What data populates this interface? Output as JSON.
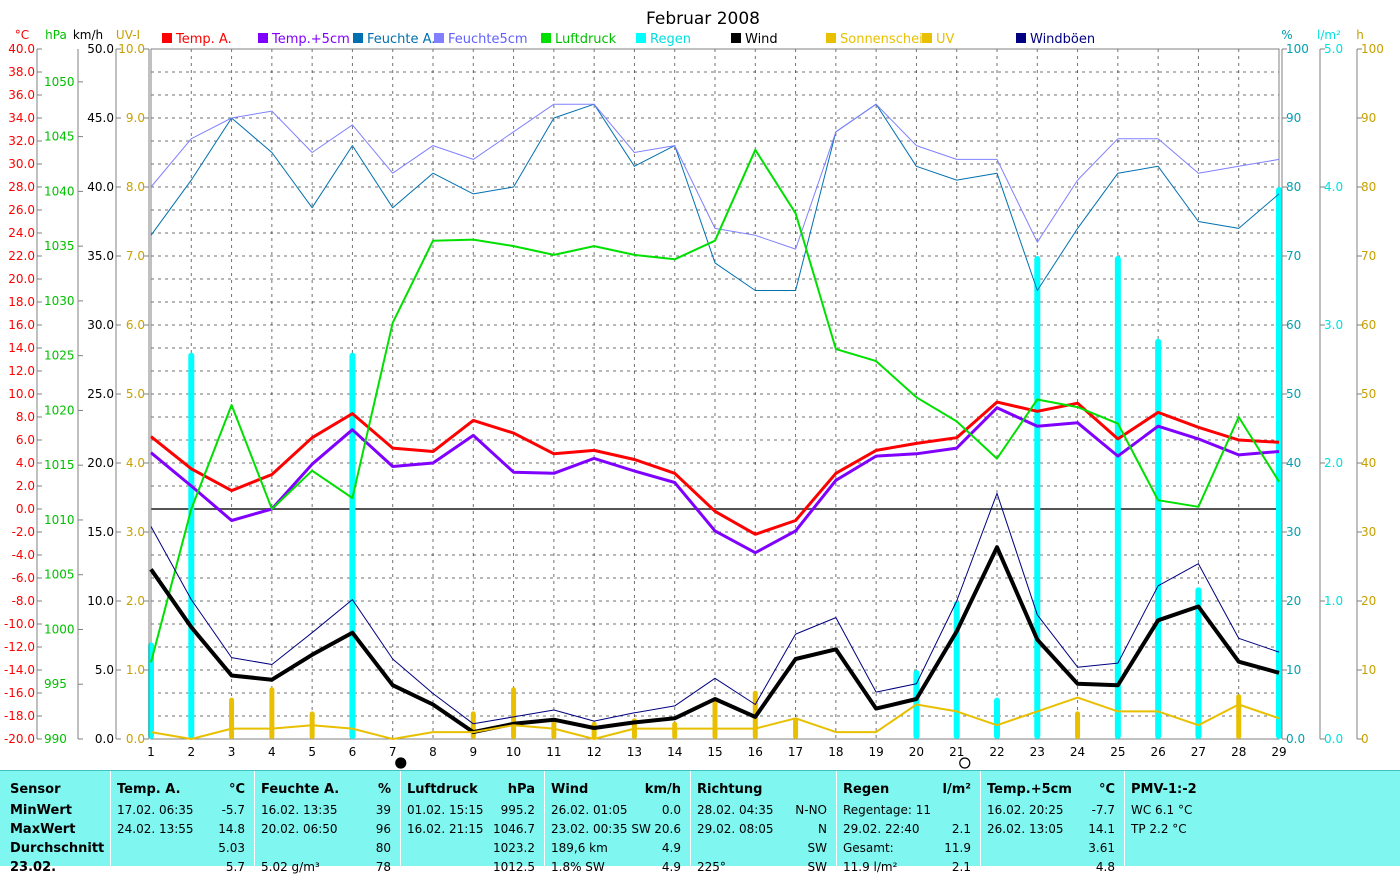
{
  "chart_data": {
    "type": "line",
    "title": "Februar 2008",
    "x": [
      1,
      2,
      3,
      4,
      5,
      6,
      7,
      8,
      9,
      10,
      11,
      12,
      13,
      14,
      15,
      16,
      17,
      18,
      19,
      20,
      21,
      22,
      23,
      24,
      25,
      26,
      27,
      28,
      29
    ],
    "xlim": [
      1,
      29
    ],
    "axes": {
      "temp": {
        "label": "°C",
        "range": [
          -20,
          40
        ],
        "ticks": [
          "-20.0",
          "-18.0",
          "-16.0",
          "-14.0",
          "-12.0",
          "-10.0",
          "-8.0",
          "-6.0",
          "-4.0",
          "-2.0",
          "0.0",
          "2.0",
          "4.0",
          "6.0",
          "8.0",
          "10.0",
          "12.0",
          "14.0",
          "16.0",
          "18.0",
          "20.0",
          "22.0",
          "24.0",
          "26.0",
          "28.0",
          "30.0",
          "32.0",
          "34.0",
          "36.0",
          "38.0",
          "40.0"
        ],
        "color": "#ff0000"
      },
      "pressure": {
        "label": "hPa",
        "range": [
          990,
          1053
        ],
        "ticks": [
          "990",
          "995",
          "1000",
          "1005",
          "1010",
          "1015",
          "1020",
          "1025",
          "1030",
          "1035",
          "1040",
          "1045",
          "1050"
        ],
        "color": "#00c000"
      },
      "wind": {
        "label": "km/h",
        "range": [
          0,
          50
        ],
        "ticks": [
          "0.0",
          "5.0",
          "10.0",
          "15.0",
          "20.0",
          "25.0",
          "30.0",
          "35.0",
          "40.0",
          "45.0",
          "50.0"
        ],
        "color": "#000000"
      },
      "uv": {
        "label": "UV-I",
        "range": [
          0,
          10
        ],
        "ticks": [
          "0.0",
          "1.0",
          "2.0",
          "3.0",
          "4.0",
          "5.0",
          "6.0",
          "7.0",
          "8.0",
          "9.0",
          "10.0"
        ],
        "color": "#c8a000"
      },
      "humidity": {
        "label": "%",
        "range": [
          0,
          100
        ],
        "ticks": [
          "0.0",
          "10",
          "20",
          "30",
          "40",
          "50",
          "60",
          "70",
          "80",
          "90",
          "100"
        ],
        "color": "#00a0b0"
      },
      "rain": {
        "label": "l/m²",
        "range": [
          0,
          5
        ],
        "ticks": [
          "0.0",
          "1.0",
          "2.0",
          "3.0",
          "4.0",
          "5.0"
        ],
        "color": "#00e0e0"
      },
      "sun": {
        "label": "h",
        "range": [
          0,
          100
        ],
        "ticks": [
          "0",
          "10",
          "20",
          "30",
          "40",
          "50",
          "60",
          "70",
          "80",
          "90",
          "100"
        ],
        "color": "#c8a000"
      }
    },
    "legend": [
      {
        "name": "Temp. A.",
        "color": "#ff0000"
      },
      {
        "name": "Temp.+5cm",
        "color": "#8000ff"
      },
      {
        "name": "Feuchte A.",
        "color": "#0070b0"
      },
      {
        "name": "Feuchte5cm",
        "color": "#8080ff"
      },
      {
        "name": "Luftdruck",
        "color": "#00e000"
      },
      {
        "name": "Regen",
        "color": "#00ffff"
      },
      {
        "name": "Wind",
        "color": "#000000"
      },
      {
        "name": "Sonnenschein",
        "color": "#e8c000"
      },
      {
        "name": "UV",
        "color": "#e8c000"
      },
      {
        "name": "Windböen",
        "color": "#000080"
      }
    ],
    "series": [
      {
        "name": "Temp. A.",
        "axis": "temp",
        "color": "#ff0000",
        "width": 3,
        "values": [
          6.3,
          3.5,
          1.6,
          3.0,
          6.2,
          8.3,
          5.3,
          5.0,
          7.7,
          6.6,
          4.8,
          5.1,
          4.3,
          3.1,
          -0.2,
          -2.2,
          -1.0,
          3.1,
          5.1,
          5.7,
          6.2,
          9.3,
          8.5,
          9.2,
          6.1,
          8.4,
          7.1,
          6.0,
          5.8
        ]
      },
      {
        "name": "Temp.+5cm",
        "axis": "temp",
        "color": "#8000ff",
        "width": 3,
        "values": [
          4.9,
          2.0,
          -1.0,
          0.0,
          3.9,
          6.9,
          3.7,
          4.0,
          6.4,
          3.2,
          3.1,
          4.4,
          3.3,
          2.3,
          -1.9,
          -3.8,
          -1.9,
          2.5,
          4.6,
          4.8,
          5.3,
          8.8,
          7.2,
          7.5,
          4.6,
          7.2,
          6.1,
          4.7,
          5.0
        ]
      },
      {
        "name": "Feuchte A.",
        "axis": "humidity",
        "color": "#0070b0",
        "width": 1,
        "values": [
          73,
          81,
          90,
          85,
          77,
          86,
          77,
          82,
          79,
          80,
          90,
          92,
          83,
          86,
          69,
          65,
          65,
          88,
          92,
          83,
          81,
          82,
          65,
          74,
          82,
          83,
          75,
          74,
          79
        ]
      },
      {
        "name": "Feuchte5cm",
        "axis": "humidity",
        "color": "#8080ff",
        "width": 1,
        "values": [
          80,
          87,
          90,
          91,
          85,
          89,
          82,
          86,
          84,
          88,
          92,
          92,
          85,
          86,
          74,
          73,
          71,
          88,
          92,
          86,
          84,
          84,
          72,
          81,
          87,
          87,
          82,
          83,
          84
        ]
      },
      {
        "name": "Luftdruck",
        "axis": "pressure",
        "color": "#00e000",
        "width": 2,
        "values": [
          997,
          1011,
          1020.5,
          1011,
          1014.5,
          1012,
          1028,
          1035.5,
          1035.6,
          1035,
          1034.2,
          1035,
          1034.2,
          1033.8,
          1035.5,
          1043.8,
          1038,
          1025.6,
          1024.5,
          1021.2,
          1019,
          1015.6,
          1021,
          1020.3,
          1018.8,
          1011.8,
          1011.2,
          1019.4,
          1013.5
        ]
      },
      {
        "name": "Wind",
        "axis": "wind",
        "color": "#000000",
        "width": 4,
        "values": [
          12.3,
          8.1,
          4.6,
          4.3,
          6.1,
          7.7,
          3.9,
          2.5,
          0.5,
          1.1,
          1.4,
          0.8,
          1.2,
          1.5,
          2.9,
          1.6,
          5.8,
          6.5,
          2.2,
          2.9,
          7.8,
          13.9,
          7.2,
          4.0,
          3.9,
          8.6,
          9.6,
          5.6,
          4.8
        ]
      },
      {
        "name": "Windböen",
        "axis": "wind",
        "color": "#000080",
        "width": 1,
        "values": [
          15.4,
          10.1,
          5.9,
          5.4,
          7.7,
          10.1,
          5.8,
          3.3,
          1.1,
          1.6,
          2.1,
          1.3,
          1.9,
          2.4,
          4.4,
          2.5,
          7.6,
          8.8,
          3.4,
          4.0,
          10.0,
          17.8,
          9.0,
          5.2,
          5.5,
          11.1,
          12.7,
          7.3,
          6.3
        ]
      },
      {
        "name": "UV",
        "axis": "uv",
        "color": "#e8c000",
        "width": 2,
        "values": [
          0.1,
          0.0,
          0.15,
          0.15,
          0.2,
          0.15,
          0.0,
          0.1,
          0.1,
          0.2,
          0.15,
          0.0,
          0.15,
          0.15,
          0.15,
          0.15,
          0.3,
          0.1,
          0.1,
          0.5,
          0.4,
          0.2,
          0.4,
          0.6,
          0.4,
          0.4,
          0.2,
          0.5,
          0.3
        ]
      }
    ],
    "bars": [
      {
        "name": "Regen",
        "axis": "rain",
        "color": "#00ffff",
        "width": 6,
        "values": [
          0.7,
          2.8,
          0,
          0,
          0,
          2.8,
          0,
          0,
          0,
          0,
          0,
          0,
          0,
          0,
          0,
          0,
          0,
          0,
          0,
          0.5,
          1.0,
          0.3,
          3.5,
          0,
          3.5,
          2.9,
          1.1,
          0,
          4.0
        ]
      },
      {
        "name": "Sonnenschein",
        "axis": "sun",
        "color": "#e8c000",
        "width": 5,
        "values": [
          0,
          0,
          6,
          7.5,
          4,
          0,
          0,
          0,
          4,
          7.5,
          3,
          2.5,
          3,
          2.5,
          5.5,
          7,
          3,
          0,
          0,
          0,
          0,
          0,
          0,
          4,
          0,
          0,
          0,
          6.5,
          0
        ]
      }
    ],
    "markers": [
      {
        "x": 7.2,
        "symbol": "filled-circle"
      },
      {
        "x": 21.2,
        "symbol": "open-circle"
      }
    ]
  },
  "table": {
    "row_labels": [
      "Sensor",
      "MinWert",
      "MaxWert",
      "Durchschnitt",
      "23.02."
    ],
    "columns": [
      {
        "title": "Temp. A.",
        "unit": "°C",
        "rows": [
          [
            "17.02.  06:35",
            "-5.7"
          ],
          [
            "24.02.  13:55",
            "14.8"
          ],
          [
            "",
            "5.03"
          ],
          [
            "",
            "5.7"
          ]
        ]
      },
      {
        "title": "Feuchte A.",
        "unit": "%",
        "rows": [
          [
            "16.02.  13:35",
            "39"
          ],
          [
            "20.02.  06:50",
            "96"
          ],
          [
            "",
            "80"
          ],
          [
            "5.02 g/m³",
            "78"
          ]
        ]
      },
      {
        "title": "Luftdruck",
        "unit": "hPa",
        "rows": [
          [
            "01.02.  15:15",
            "995.2"
          ],
          [
            "16.02.  21:15",
            "1046.7"
          ],
          [
            "",
            "1023.2"
          ],
          [
            "",
            "1012.5"
          ]
        ]
      },
      {
        "title": "Wind",
        "unit": "km/h",
        "rows": [
          [
            "26.02.  01:05",
            "0.0"
          ],
          [
            "23.02.  00:35 SW",
            "20.6"
          ],
          [
            "189,6 km",
            "4.9"
          ],
          [
            "1.8% SW",
            "4.9"
          ]
        ]
      },
      {
        "title": "Richtung",
        "unit": "",
        "rows": [
          [
            "28.02.  04:35",
            "N-NO"
          ],
          [
            "29.02.  08:05",
            "N"
          ],
          [
            "",
            "SW"
          ],
          [
            "225°",
            "SW"
          ]
        ]
      },
      {
        "title": "Regen",
        "unit": "l/m²",
        "rows": [
          [
            "Regentage: 11",
            ""
          ],
          [
            "29.02.  22:40",
            "2.1"
          ],
          [
            "Gesamt:",
            "11.9"
          ],
          [
            "11.9 l/m²",
            "2.1"
          ]
        ]
      },
      {
        "title": "Temp.+5cm",
        "unit": "°C",
        "rows": [
          [
            "16.02.  20:25",
            "-7.7"
          ],
          [
            "26.02.  13:05",
            "14.1"
          ],
          [
            "",
            "3.61"
          ],
          [
            "",
            "4.8"
          ]
        ]
      },
      {
        "title": "PMV-1:-2",
        "unit": "",
        "rows": [
          [
            "WC 6.1 °C",
            ""
          ],
          [
            "TP 2.2 °C",
            ""
          ],
          [
            "",
            ""
          ],
          [
            "",
            ""
          ]
        ]
      }
    ]
  }
}
